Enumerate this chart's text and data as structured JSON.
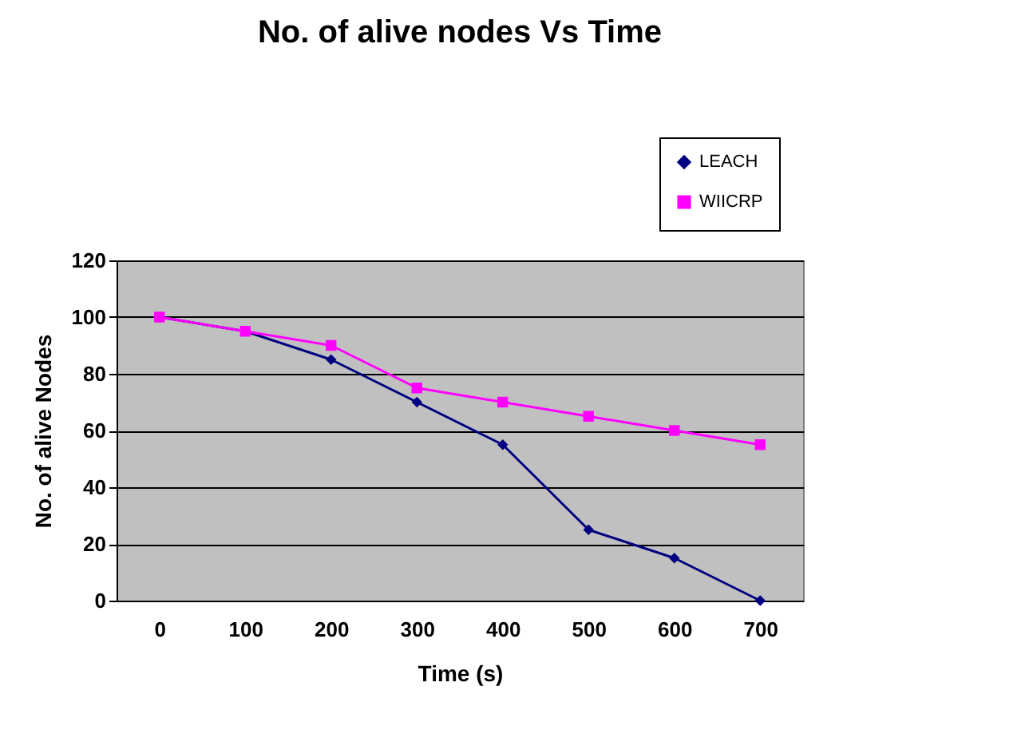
{
  "chart_data": {
    "type": "line",
    "title": "No. of alive nodes Vs Time",
    "xlabel": "Time (s)",
    "ylabel": "No. of alive Nodes",
    "categories": [
      "0",
      "100",
      "200",
      "300",
      "400",
      "500",
      "600",
      "700"
    ],
    "series": [
      {
        "name": "LEACH",
        "color": "#000080",
        "marker": "diamond",
        "values": [
          100,
          95,
          85,
          70,
          55,
          25,
          15,
          0
        ]
      },
      {
        "name": "WIICRP",
        "color": "#ff00ff",
        "marker": "square",
        "values": [
          100,
          95,
          90,
          75,
          70,
          65,
          60,
          55
        ]
      }
    ],
    "ylim": [
      0,
      120
    ],
    "yticks": [
      0,
      20,
      40,
      60,
      80,
      100,
      120
    ],
    "grid": "y",
    "legend": "top right"
  }
}
